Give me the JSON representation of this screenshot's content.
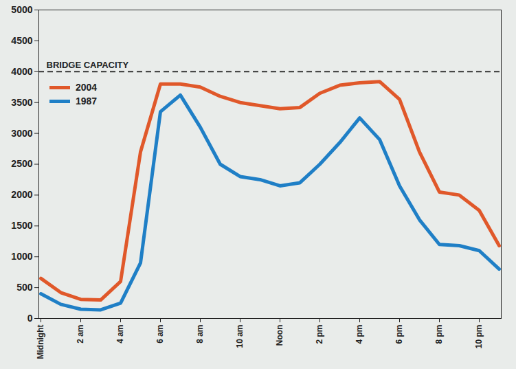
{
  "chart_data": {
    "type": "line",
    "categories": [
      "Midnight",
      null,
      "2 am",
      null,
      "4 am",
      null,
      "6 am",
      null,
      "8 am",
      null,
      "10 am",
      null,
      "Noon",
      null,
      "2 pm",
      null,
      "4 pm",
      null,
      "6 pm",
      null,
      "8 pm",
      null,
      "10 pm",
      null
    ],
    "series": [
      {
        "name": "2004",
        "color": "#e0582a",
        "values": [
          650,
          420,
          310,
          300,
          600,
          2700,
          3800,
          3800,
          3750,
          3600,
          3500,
          3450,
          3400,
          3420,
          3650,
          3780,
          3820,
          3840,
          3550,
          2700,
          2050,
          2000,
          1750,
          1180
        ]
      },
      {
        "name": "1987",
        "color": "#1f7fc6",
        "values": [
          400,
          230,
          150,
          140,
          250,
          900,
          3350,
          3620,
          3100,
          2500,
          2300,
          2250,
          2150,
          2200,
          2500,
          2850,
          3250,
          2900,
          2150,
          1600,
          1200,
          1180,
          1100,
          800
        ]
      }
    ],
    "ylim": [
      0,
      5000
    ],
    "yticks": [
      0,
      500,
      1000,
      1500,
      2000,
      2500,
      3000,
      3500,
      4000,
      4500,
      5000
    ],
    "grid": false,
    "legend": "top-left",
    "annotations": [
      {
        "text": "BRIDGE CAPACITY",
        "y": 4000,
        "line_style": "dashed"
      }
    ]
  }
}
